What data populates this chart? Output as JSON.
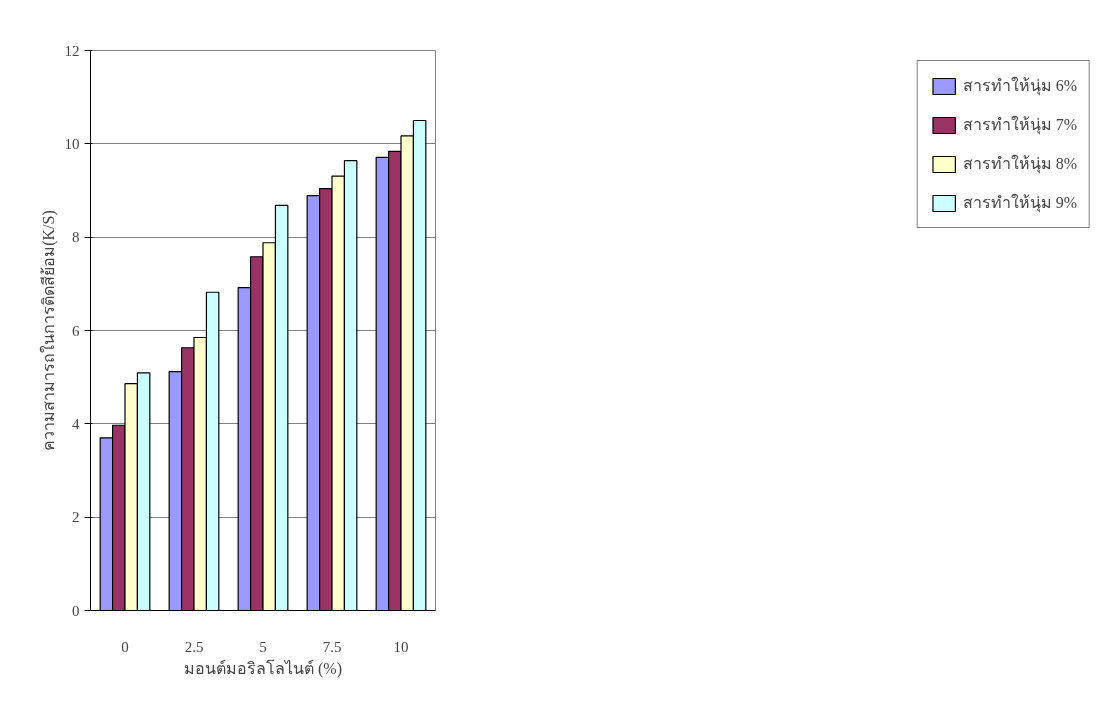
{
  "chart_data": {
    "type": "bar",
    "xlabel": "มอนต์มอริลโลไนต์ (%)",
    "ylabel": "ความสามารถในการติดสีย้อม(K/S)",
    "categories": [
      "0",
      "2.5",
      "5",
      "7.5",
      "10"
    ],
    "series": [
      {
        "name": "สารทำให้นุ่ม 6%",
        "color": "#9999ff",
        "values": [
          3.7,
          5.12,
          6.92,
          8.89,
          9.71
        ]
      },
      {
        "name": "สารทำให้นุ่ม 7%",
        "color": "#993366",
        "values": [
          3.97,
          5.63,
          7.58,
          9.04,
          9.84
        ]
      },
      {
        "name": "สารทำให้นุ่ม 8%",
        "color": "#ffffcc",
        "values": [
          4.86,
          5.85,
          7.88,
          9.31,
          10.17
        ]
      },
      {
        "name": "สารทำให้นุ่ม 9%",
        "color": "#ccffff",
        "values": [
          5.09,
          6.82,
          8.68,
          9.64,
          10.5
        ]
      }
    ],
    "ylim": [
      0,
      12
    ],
    "yticks": [
      0,
      2,
      4,
      6,
      8,
      10,
      12
    ],
    "grid": "y",
    "legend": "right"
  }
}
